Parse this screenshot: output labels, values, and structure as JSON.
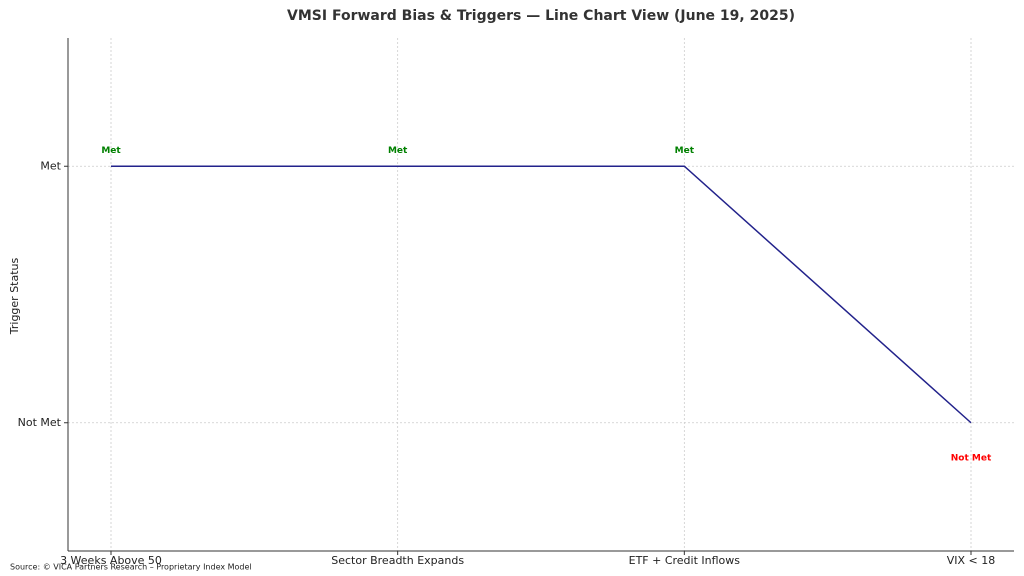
{
  "chart_data": {
    "type": "line",
    "title": "VMSI Forward Bias & Triggers — Line Chart View (June 19, 2025)",
    "y_label": "Trigger Status",
    "source": "Source: © VICA Partners Research – Proprietary Index Model",
    "categories": [
      "3 Weeks Above 50",
      "Sector Breadth Expands",
      "ETF + Credit Inflows",
      "VIX < 18"
    ],
    "series": [
      {
        "color": "#22228b",
        "values": [
          1,
          1,
          1,
          0
        ],
        "value_labels": [
          "Met",
          "Met",
          "Met",
          "Not Met"
        ],
        "value_label_colors": [
          "#008000",
          "#008000",
          "#008000",
          "#ff0000"
        ]
      }
    ],
    "ylim": [
      -0.5,
      1.5
    ],
    "yticks": [
      {
        "value": 0,
        "label": "Not Met"
      },
      {
        "value": 1,
        "label": "Met"
      }
    ],
    "grid": true
  }
}
